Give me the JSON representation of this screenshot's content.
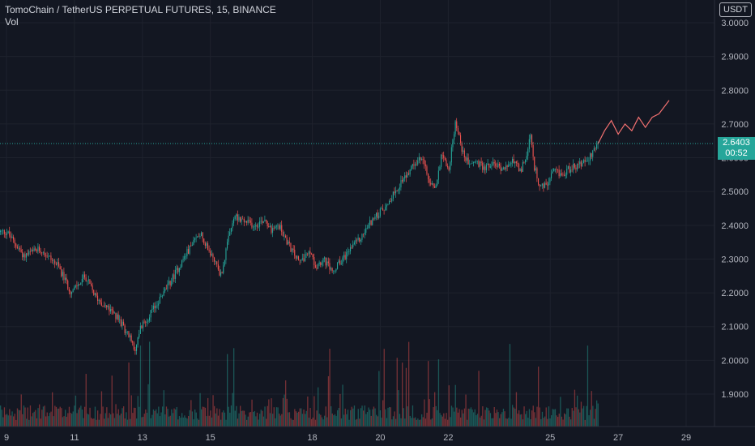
{
  "header": {
    "symbol_line": "TomoChain / TetherUS PERPETUAL FUTURES, 15, BINANCE",
    "indicator": "Vol"
  },
  "price_axis": {
    "unit_badge": "USDT",
    "labels": [
      "3.0000",
      "2.9000",
      "2.8000",
      "2.7000",
      "2.6000",
      "2.5000",
      "2.4000",
      "2.3000",
      "2.2000",
      "2.1000",
      "2.0000",
      "1.9000"
    ]
  },
  "last_price": {
    "value": "2.6403",
    "countdown": "00:52"
  },
  "colors": {
    "background": "#131722",
    "up": "#26a69a",
    "down": "#ef5350",
    "grid": "#1e222d",
    "forecast": "#f27070"
  },
  "chart_data": {
    "type": "line",
    "title": "TomoChain / TetherUS PERPETUAL FUTURES, 15, BINANCE",
    "ylim": [
      1.82,
      3.02
    ],
    "xlim": [
      9,
      30
    ],
    "x_ticks": [
      "9",
      "11",
      "13",
      "15",
      "18",
      "20",
      "22",
      "25",
      "27",
      "29"
    ],
    "x_tick_values": [
      9,
      11,
      13,
      15,
      18,
      20,
      22,
      25,
      27,
      29
    ],
    "grid": true,
    "last_price": 2.6403,
    "series": [
      {
        "values_x": [
          9.0,
          9.5,
          10.0,
          10.5,
          10.9,
          11.3,
          11.6,
          11.9,
          12.3,
          12.6,
          12.8,
          12.9,
          13.3,
          13.8,
          14.3,
          14.7,
          14.9,
          15.1,
          15.3,
          15.5,
          15.7,
          16.0,
          16.3,
          16.6,
          16.8,
          17.0,
          17.3,
          17.6,
          17.9,
          18.1,
          18.3,
          18.6,
          18.8,
          19.1,
          19.4,
          19.7,
          20.0,
          20.3,
          20.6,
          20.9,
          21.2,
          21.4,
          21.6,
          21.8,
          22.0,
          22.2,
          22.4,
          22.6,
          22.8,
          23.0,
          23.3,
          23.6,
          23.9,
          24.1,
          24.3,
          24.4,
          24.5,
          24.7,
          24.9,
          25.1,
          25.3,
          25.6,
          25.9,
          26.2,
          26.4
        ],
        "values_y": [
          2.38,
          2.31,
          2.33,
          2.28,
          2.2,
          2.25,
          2.19,
          2.16,
          2.12,
          2.07,
          2.03,
          2.09,
          2.15,
          2.23,
          2.32,
          2.38,
          2.33,
          2.3,
          2.25,
          2.35,
          2.43,
          2.41,
          2.4,
          2.42,
          2.38,
          2.4,
          2.34,
          2.29,
          2.32,
          2.28,
          2.3,
          2.26,
          2.29,
          2.33,
          2.36,
          2.41,
          2.44,
          2.48,
          2.53,
          2.57,
          2.6,
          2.54,
          2.5,
          2.62,
          2.56,
          2.71,
          2.62,
          2.58,
          2.59,
          2.57,
          2.58,
          2.57,
          2.59,
          2.56,
          2.6,
          2.67,
          2.58,
          2.51,
          2.52,
          2.56,
          2.55,
          2.57,
          2.58,
          2.61,
          2.64
        ]
      },
      {
        "values_x": [
          26.4,
          26.6,
          26.8,
          27.0,
          27.2,
          27.4,
          27.6,
          27.8,
          28.0,
          28.2,
          28.5
        ],
        "values_y": [
          2.64,
          2.68,
          2.71,
          2.67,
          2.7,
          2.68,
          2.72,
          2.69,
          2.72,
          2.73,
          2.77
        ]
      }
    ]
  }
}
